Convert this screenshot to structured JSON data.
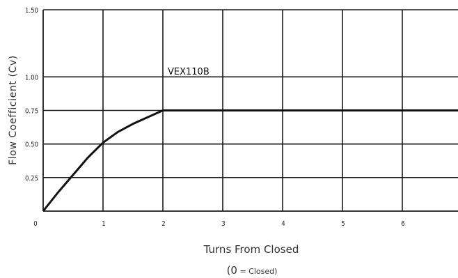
{
  "chart_data": {
    "type": "line",
    "title": "",
    "xlabel": "Turns From Closed",
    "xlabel_note": {
      "zero": "0",
      "text": " = Closed)",
      "open_paren": "("
    },
    "ylabel": "Flow Coefficient (Cv)",
    "xlim": [
      0,
      7
    ],
    "ylim": [
      0,
      1.5
    ],
    "x_ticks": [
      "0",
      "1",
      "2",
      "3",
      "4",
      "5",
      "6"
    ],
    "y_ticks": [
      "0.25",
      "0.50",
      "0.75",
      "1.00",
      "1.50"
    ],
    "grid": true,
    "series": [
      {
        "name": "VEX110B",
        "x": [
          0,
          0.25,
          0.5,
          0.75,
          1.0,
          1.25,
          1.5,
          1.75,
          2.0,
          7.0
        ],
        "y": [
          0,
          0.14,
          0.27,
          0.4,
          0.51,
          0.59,
          0.65,
          0.7,
          0.75,
          0.75
        ]
      }
    ],
    "colors": {
      "line": "#111111",
      "grid": "#1a1a1a",
      "background": "#ffffff"
    }
  }
}
